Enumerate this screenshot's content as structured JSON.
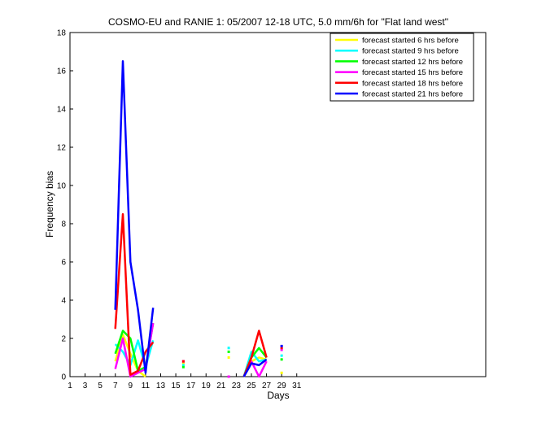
{
  "chart_data": {
    "type": "line",
    "title": "COSMO-EU and RANIE 1: 05/2007 12-18 UTC, 5.0 mm/6h for \"Flat land west\"",
    "xlabel": "Days",
    "ylabel": "Frequency bias",
    "xlim": [
      1,
      56
    ],
    "ylim": [
      0,
      18
    ],
    "x_ticks": [
      1,
      3,
      5,
      7,
      9,
      11,
      13,
      15,
      17,
      19,
      21,
      23,
      25,
      27,
      29,
      31
    ],
    "y_ticks": [
      0,
      2,
      4,
      6,
      8,
      10,
      12,
      14,
      16,
      18
    ],
    "grid": false,
    "legend_position": "top-right",
    "series": [
      {
        "name": "forecast started 6 hrs before",
        "color": "#ffff00",
        "points": [
          [
            7,
            0.8
          ],
          [
            8,
            2.2
          ],
          [
            9,
            1.2
          ],
          [
            10,
            0.3
          ],
          [
            11,
            0.0
          ],
          [
            null,
            null
          ],
          [
            16,
            0.7
          ],
          [
            null,
            null
          ],
          [
            22,
            1.0
          ],
          [
            null,
            null
          ],
          [
            24,
            0.0
          ],
          [
            25,
            0.8
          ],
          [
            26,
            1.0
          ],
          [
            27,
            0.9
          ],
          [
            null,
            null
          ],
          [
            29,
            0.2
          ]
        ]
      },
      {
        "name": "forecast started 9 hrs before",
        "color": "#00ffff",
        "points": [
          [
            7,
            1.7
          ],
          [
            8,
            1.3
          ],
          [
            9,
            0.6
          ],
          [
            10,
            1.9
          ],
          [
            11,
            0.5
          ],
          [
            12,
            1.9
          ],
          [
            null,
            null
          ],
          [
            16,
            0.6
          ],
          [
            null,
            null
          ],
          [
            22,
            1.5
          ],
          [
            null,
            null
          ],
          [
            24,
            0.0
          ],
          [
            25,
            1.3
          ],
          [
            26,
            0.8
          ],
          [
            27,
            0.9
          ],
          [
            null,
            null
          ],
          [
            29,
            1.1
          ]
        ]
      },
      {
        "name": "forecast started 12 hrs before",
        "color": "#00ff00",
        "points": [
          [
            7,
            1.2
          ],
          [
            8,
            2.4
          ],
          [
            9,
            2.0
          ],
          [
            10,
            0.3
          ],
          [
            11,
            0.5
          ],
          [
            12,
            2.8
          ],
          [
            null,
            null
          ],
          [
            16,
            0.5
          ],
          [
            null,
            null
          ],
          [
            22,
            1.3
          ],
          [
            null,
            null
          ],
          [
            24,
            0.0
          ],
          [
            25,
            1.0
          ],
          [
            26,
            1.5
          ],
          [
            27,
            1.0
          ],
          [
            null,
            null
          ],
          [
            29,
            0.9
          ]
        ]
      },
      {
        "name": "forecast started 15 hrs before",
        "color": "#ff00ff",
        "points": [
          [
            7,
            0.4
          ],
          [
            8,
            2.0
          ],
          [
            9,
            0.0
          ],
          [
            10,
            0.2
          ],
          [
            11,
            0.4
          ],
          [
            12,
            2.8
          ],
          [
            null,
            null
          ],
          [
            16,
            0.8
          ],
          [
            null,
            null
          ],
          [
            22,
            0.0
          ],
          [
            null,
            null
          ],
          [
            24,
            0.0
          ],
          [
            25,
            0.8
          ],
          [
            26,
            0.0
          ],
          [
            27,
            0.8
          ],
          [
            null,
            null
          ],
          [
            29,
            1.4
          ]
        ]
      },
      {
        "name": "forecast started 18 hrs before",
        "color": "#ff0000",
        "points": [
          [
            7,
            2.5
          ],
          [
            8,
            8.5
          ],
          [
            9,
            0.1
          ],
          [
            10,
            0.3
          ],
          [
            11,
            1.3
          ],
          [
            12,
            1.8
          ],
          [
            null,
            null
          ],
          [
            16,
            0.8
          ],
          [
            null,
            null
          ],
          [
            24,
            0.0
          ],
          [
            25,
            1.0
          ],
          [
            26,
            2.4
          ],
          [
            27,
            1.0
          ],
          [
            null,
            null
          ],
          [
            29,
            1.5
          ]
        ]
      },
      {
        "name": "forecast started 21 hrs before",
        "color": "#0000ff",
        "points": [
          [
            7,
            3.5
          ],
          [
            8,
            16.5
          ],
          [
            9,
            6.0
          ],
          [
            10,
            3.5
          ],
          [
            11,
            0.2
          ],
          [
            12,
            3.6
          ],
          [
            null,
            null
          ],
          [
            24,
            0.0
          ],
          [
            25,
            0.7
          ],
          [
            26,
            0.6
          ],
          [
            27,
            0.9
          ],
          [
            null,
            null
          ],
          [
            29,
            1.6
          ]
        ]
      }
    ]
  }
}
